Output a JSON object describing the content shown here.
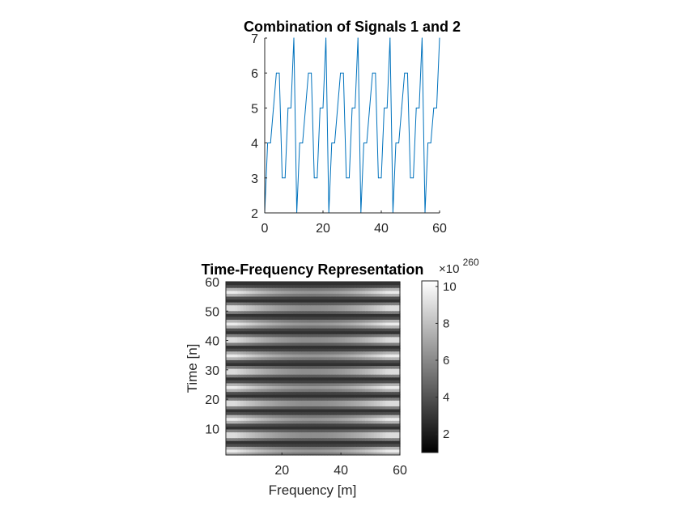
{
  "chart_data": [
    {
      "type": "line",
      "title": "Combination of Signals 1 and 2",
      "xlabel": "",
      "ylabel": "",
      "xlim": [
        0,
        60
      ],
      "ylim": [
        2,
        7
      ],
      "xticks": [
        0,
        20,
        40,
        60
      ],
      "yticks": [
        2,
        3,
        4,
        5,
        6,
        7
      ],
      "grid": false,
      "line_color": "#0072BD",
      "series": [
        {
          "x": [
            0,
            1,
            2,
            3,
            4,
            5,
            6,
            7,
            8,
            9,
            10,
            11,
            12,
            13,
            14,
            15,
            16,
            17,
            18,
            19,
            20,
            21,
            22,
            23,
            24,
            25,
            26,
            27,
            28,
            29,
            30,
            31,
            32,
            33,
            34,
            35,
            36,
            37,
            38,
            39,
            40,
            41,
            42,
            43,
            44,
            45,
            46,
            47,
            48,
            49,
            50,
            51,
            52,
            53,
            54,
            55,
            56,
            57,
            58,
            59,
            60
          ],
          "y": [
            2,
            4,
            4,
            5,
            6,
            6,
            3,
            3,
            5,
            5,
            7,
            2,
            4,
            4,
            5,
            6,
            6,
            3,
            3,
            5,
            5,
            7,
            2,
            4,
            4,
            5,
            6,
            6,
            3,
            3,
            5,
            5,
            7,
            2,
            4,
            4,
            5,
            6,
            6,
            3,
            3,
            5,
            5,
            7,
            2,
            4,
            4,
            5,
            6,
            6,
            3,
            3,
            5,
            5,
            7,
            2,
            4,
            4,
            5,
            5,
            7
          ]
        }
      ]
    },
    {
      "type": "heatmap",
      "title": "Time-Frequency Representation",
      "xlabel": "Frequency [m]",
      "ylabel": "Time [n]",
      "xlim": [
        1,
        60
      ],
      "ylim": [
        1,
        60
      ],
      "xticks": [
        20,
        40,
        60
      ],
      "yticks": [
        10,
        20,
        30,
        40,
        50,
        60
      ],
      "colormap": "gray",
      "colorbar": {
        "range": [
          1,
          10.3
        ],
        "ticks": [
          2,
          4,
          6,
          8,
          10
        ],
        "exponent_base": "×10",
        "exponent": "260"
      },
      "time_period": 5.5,
      "frequency_peak_index": 30,
      "value_model": "intensity varies periodically along Time [n] (period ≈ 5.5) and is darkest near Frequency [m] ≈ 30"
    }
  ]
}
